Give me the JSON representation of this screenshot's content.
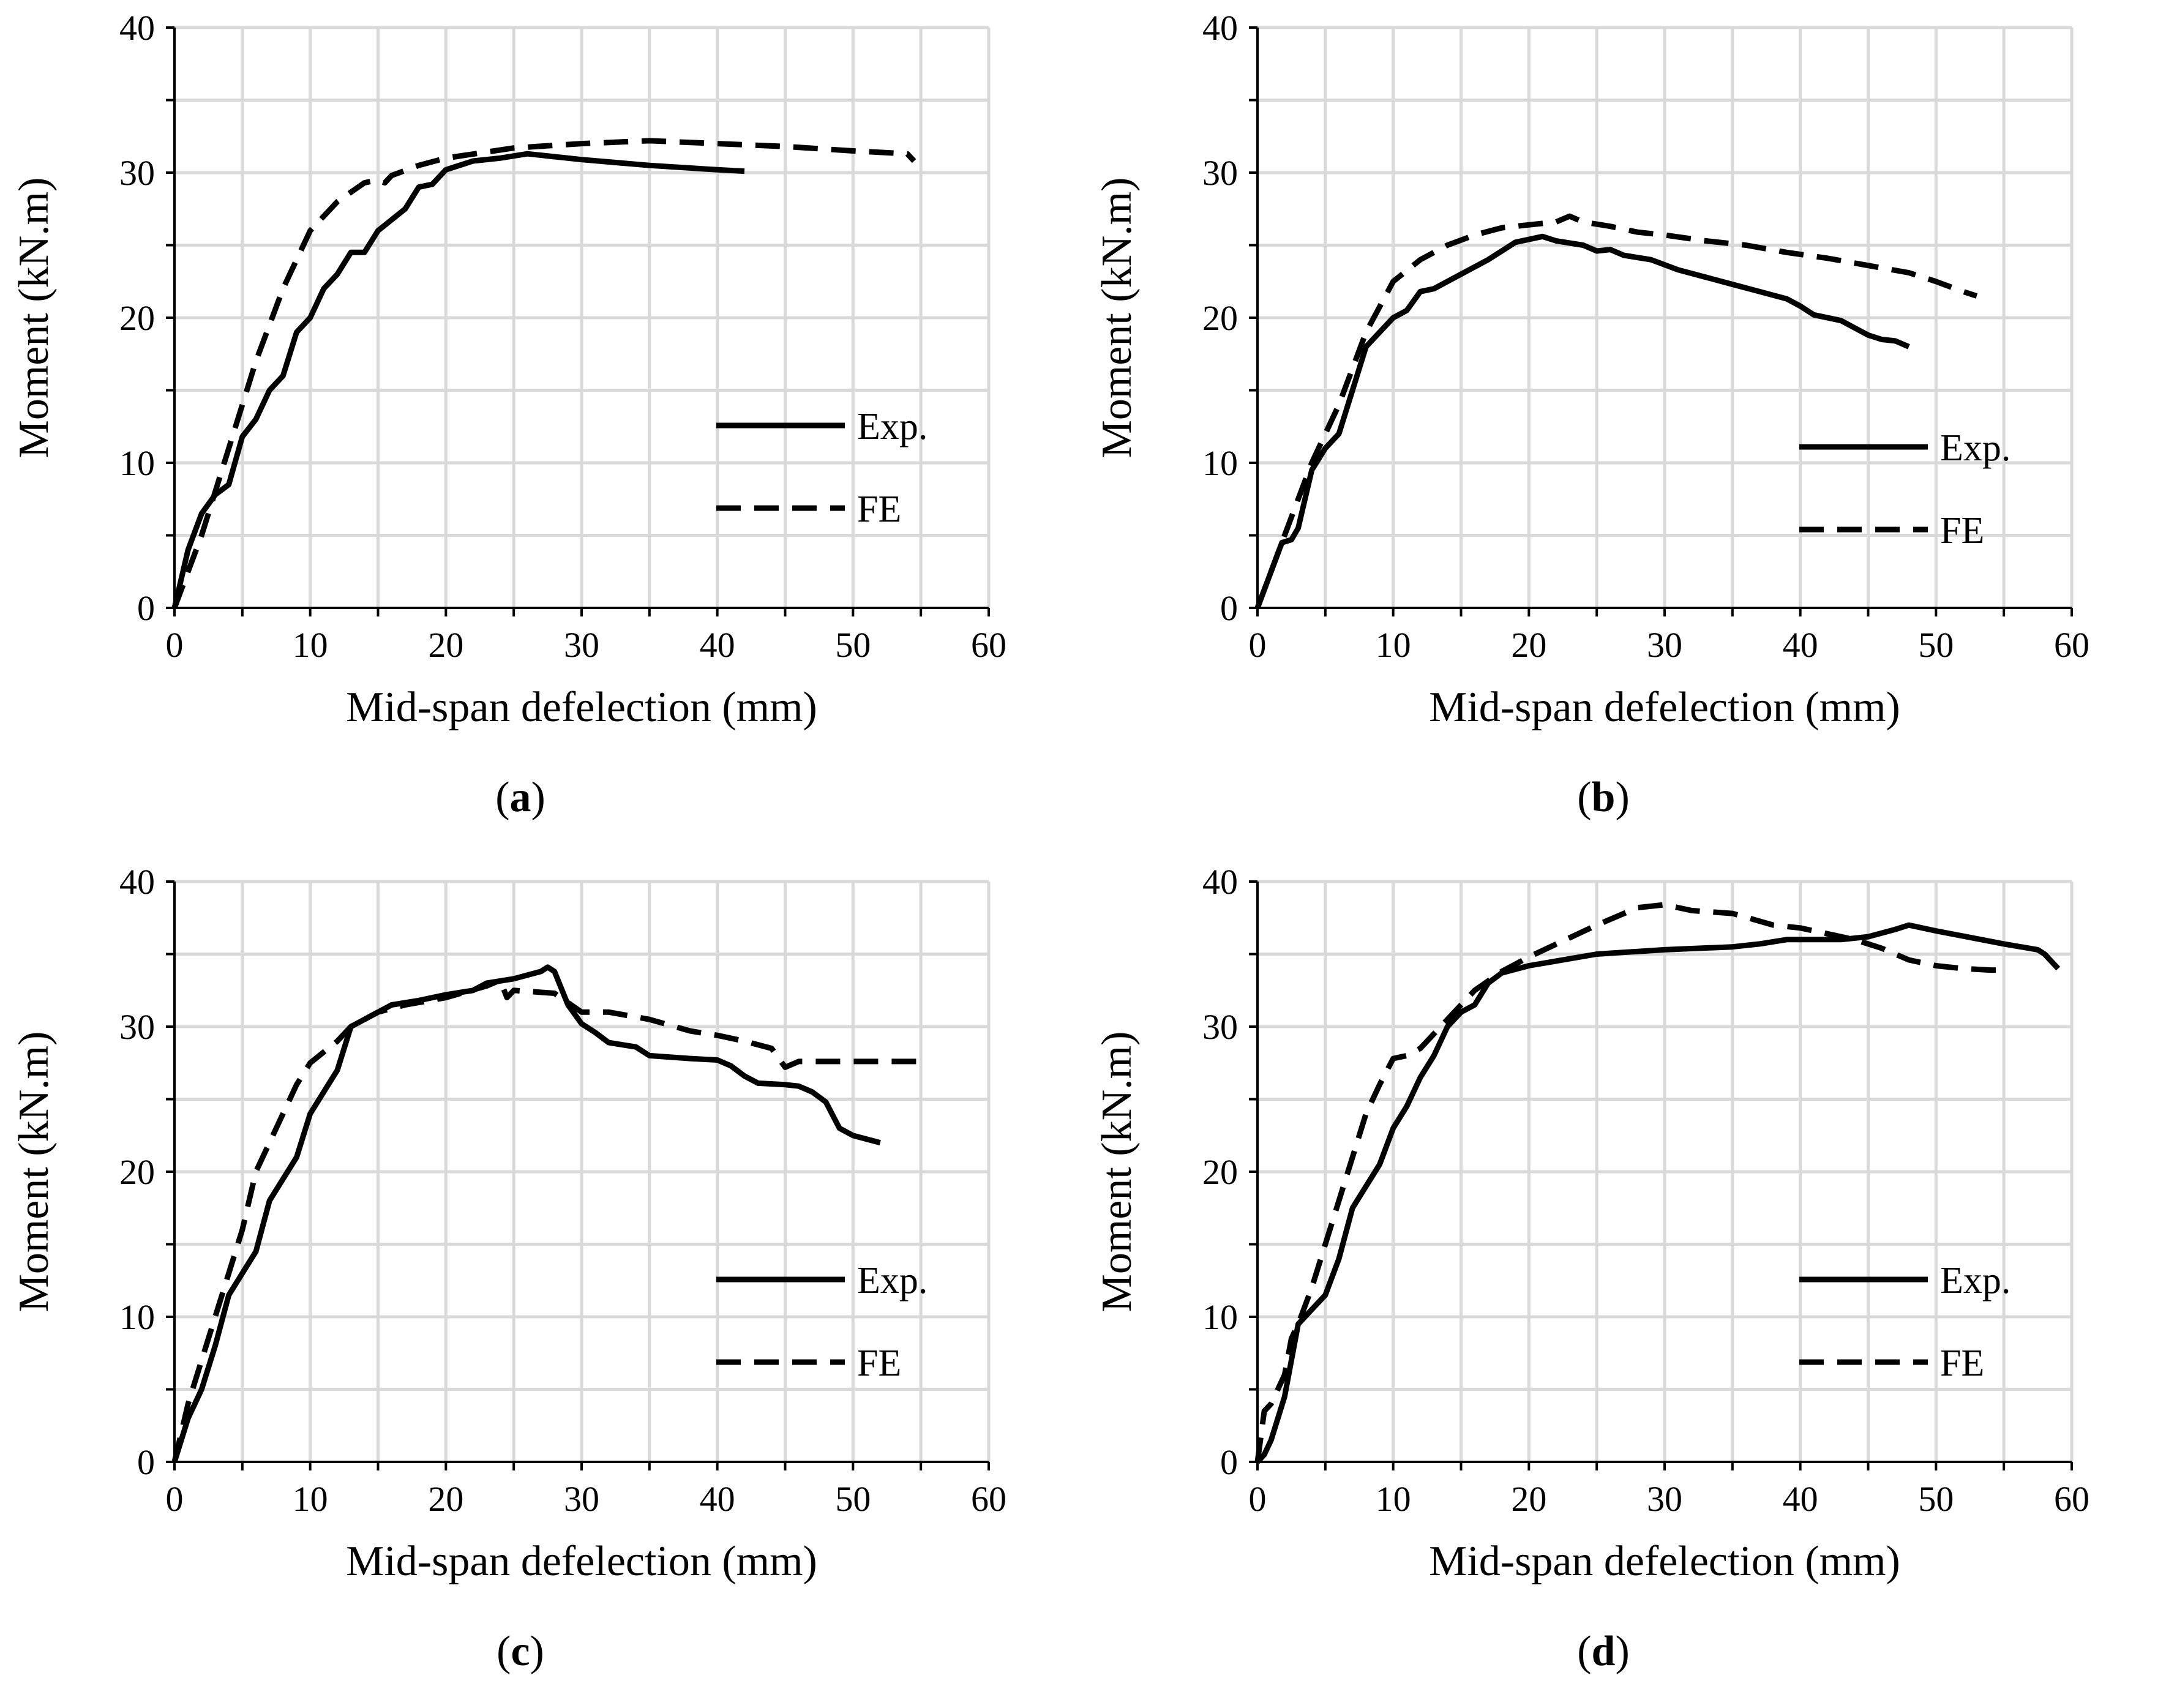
{
  "chart_data": [
    {
      "panel": "a",
      "caption_open": "(",
      "caption_letter": "a",
      "caption_close": ")",
      "type": "line",
      "xlabel": "Mid-span defelection (mm)",
      "ylabel": "Moment (kN.m)",
      "xlim": [
        0,
        60
      ],
      "ylim": [
        0,
        40
      ],
      "xticks": [
        0,
        10,
        20,
        30,
        40,
        50,
        60
      ],
      "yticks": [
        0,
        10,
        20,
        30,
        40
      ],
      "grid": true,
      "legend_position": "right-middle",
      "series": [
        {
          "name": "Exp.",
          "style": "solid",
          "points": [
            [
              0,
              0
            ],
            [
              1,
              4
            ],
            [
              2,
              6.5
            ],
            [
              3,
              7.8
            ],
            [
              4,
              8.5
            ],
            [
              5,
              11.8
            ],
            [
              6,
              13
            ],
            [
              7,
              15
            ],
            [
              8,
              16
            ],
            [
              9,
              19
            ],
            [
              10,
              20
            ],
            [
              11,
              22
            ],
            [
              12,
              23
            ],
            [
              13,
              24.5
            ],
            [
              14,
              24.5
            ],
            [
              15,
              26
            ],
            [
              17,
              27.5
            ],
            [
              18,
              29
            ],
            [
              19,
              29.2
            ],
            [
              20,
              30.2
            ],
            [
              22,
              30.8
            ],
            [
              24,
              31
            ],
            [
              26,
              31.3
            ],
            [
              30,
              30.9
            ],
            [
              35,
              30.5
            ],
            [
              40,
              30.2
            ],
            [
              42,
              30.1
            ]
          ]
        },
        {
          "name": "FE",
          "style": "dashed",
          "points": [
            [
              0,
              0
            ],
            [
              2,
              5
            ],
            [
              4,
              11
            ],
            [
              6,
              17
            ],
            [
              8,
              22
            ],
            [
              10,
              26
            ],
            [
              12,
              28
            ],
            [
              14,
              29.3
            ],
            [
              15,
              29.5
            ],
            [
              15.5,
              29.3
            ],
            [
              16,
              29.8
            ],
            [
              18,
              30.5
            ],
            [
              20,
              31
            ],
            [
              25,
              31.7
            ],
            [
              30,
              32
            ],
            [
              35,
              32.2
            ],
            [
              40,
              32
            ],
            [
              45,
              31.8
            ],
            [
              50,
              31.5
            ],
            [
              54,
              31.3
            ],
            [
              54.5,
              30.8
            ]
          ]
        }
      ]
    },
    {
      "panel": "b",
      "caption_open": "(",
      "caption_letter": "b",
      "caption_close": ")",
      "type": "line",
      "xlabel": "Mid-span defelection (mm)",
      "ylabel": "Moment (kN.m)",
      "xlim": [
        0,
        60
      ],
      "ylim": [
        0,
        40
      ],
      "xticks": [
        0,
        10,
        20,
        30,
        40,
        50,
        60
      ],
      "yticks": [
        0,
        10,
        20,
        30,
        40
      ],
      "grid": true,
      "legend_position": "right-middle",
      "series": [
        {
          "name": "Exp.",
          "style": "solid",
          "points": [
            [
              0,
              0
            ],
            [
              1,
              2.5
            ],
            [
              1.8,
              4.5
            ],
            [
              2.5,
              4.7
            ],
            [
              3,
              5.5
            ],
            [
              4,
              9.5
            ],
            [
              5,
              11
            ],
            [
              6,
              12
            ],
            [
              7,
              15
            ],
            [
              8,
              18
            ],
            [
              9,
              19
            ],
            [
              10,
              20
            ],
            [
              11,
              20.5
            ],
            [
              12,
              21.8
            ],
            [
              13,
              22
            ],
            [
              15,
              23
            ],
            [
              17,
              24
            ],
            [
              19,
              25.2
            ],
            [
              21,
              25.6
            ],
            [
              22,
              25.3
            ],
            [
              24,
              25
            ],
            [
              25,
              24.6
            ],
            [
              26,
              24.7
            ],
            [
              27,
              24.3
            ],
            [
              29,
              24
            ],
            [
              31,
              23.3
            ],
            [
              33,
              22.8
            ],
            [
              35,
              22.3
            ],
            [
              37,
              21.8
            ],
            [
              39,
              21.3
            ],
            [
              40,
              20.8
            ],
            [
              41,
              20.2
            ],
            [
              43,
              19.8
            ],
            [
              45,
              18.8
            ],
            [
              46,
              18.5
            ],
            [
              47,
              18.4
            ],
            [
              48,
              18
            ]
          ]
        },
        {
          "name": "FE",
          "style": "dashed",
          "points": [
            [
              0,
              0
            ],
            [
              2,
              5
            ],
            [
              4,
              10
            ],
            [
              6,
              14
            ],
            [
              8,
              19
            ],
            [
              10,
              22.5
            ],
            [
              12,
              24
            ],
            [
              14,
              25
            ],
            [
              16,
              25.7
            ],
            [
              18,
              26.2
            ],
            [
              20,
              26.4
            ],
            [
              22,
              26.6
            ],
            [
              23,
              27
            ],
            [
              24,
              26.6
            ],
            [
              26,
              26.3
            ],
            [
              28,
              25.9
            ],
            [
              30,
              25.7
            ],
            [
              33,
              25.3
            ],
            [
              36,
              25
            ],
            [
              39,
              24.5
            ],
            [
              42,
              24.1
            ],
            [
              45,
              23.6
            ],
            [
              48,
              23.1
            ],
            [
              50,
              22.5
            ],
            [
              52,
              21.8
            ],
            [
              53,
              21.5
            ]
          ]
        }
      ]
    },
    {
      "panel": "c",
      "caption_open": "(",
      "caption_letter": "c",
      "caption_close": ")",
      "type": "line",
      "xlabel": "Mid-span defelection (mm)",
      "ylabel": "Moment (kN.m)",
      "xlim": [
        0,
        60
      ],
      "ylim": [
        0,
        40
      ],
      "xticks": [
        0,
        10,
        20,
        30,
        40,
        50,
        60
      ],
      "yticks": [
        0,
        10,
        20,
        30,
        40
      ],
      "grid": true,
      "legend_position": "right-middle",
      "series": [
        {
          "name": "Exp.",
          "style": "solid",
          "points": [
            [
              0,
              0
            ],
            [
              1,
              3
            ],
            [
              2,
              5
            ],
            [
              3,
              8
            ],
            [
              4,
              11.5
            ],
            [
              5,
              13
            ],
            [
              6,
              14.5
            ],
            [
              7,
              18
            ],
            [
              8,
              19.5
            ],
            [
              9,
              21
            ],
            [
              10,
              24
            ],
            [
              11,
              25.5
            ],
            [
              12,
              27
            ],
            [
              13,
              30
            ],
            [
              14,
              30.5
            ],
            [
              15,
              31
            ],
            [
              16,
              31.5
            ],
            [
              18,
              31.8
            ],
            [
              20,
              32.2
            ],
            [
              22,
              32.5
            ],
            [
              23,
              33
            ],
            [
              25,
              33.3
            ],
            [
              27,
              33.8
            ],
            [
              27.5,
              34.1
            ],
            [
              28,
              33.8
            ],
            [
              29,
              31.5
            ],
            [
              30,
              30.2
            ],
            [
              31,
              29.6
            ],
            [
              32,
              28.9
            ],
            [
              34,
              28.6
            ],
            [
              35,
              28
            ],
            [
              38,
              27.8
            ],
            [
              40,
              27.7
            ],
            [
              41,
              27.3
            ],
            [
              42,
              26.6
            ],
            [
              43,
              26.1
            ],
            [
              45,
              26
            ],
            [
              46,
              25.9
            ],
            [
              47,
              25.5
            ],
            [
              48,
              24.8
            ],
            [
              49,
              23
            ],
            [
              50,
              22.5
            ],
            [
              52,
              22
            ]
          ]
        },
        {
          "name": "FE",
          "style": "dashed",
          "points": [
            [
              0,
              0
            ],
            [
              1,
              4
            ],
            [
              2,
              7
            ],
            [
              3,
              10
            ],
            [
              4,
              13
            ],
            [
              5,
              16
            ],
            [
              6,
              20
            ],
            [
              7,
              22
            ],
            [
              8,
              24
            ],
            [
              9,
              26
            ],
            [
              10,
              27.5
            ],
            [
              12,
              29
            ],
            [
              13,
              30
            ],
            [
              15,
              31
            ],
            [
              17,
              31.5
            ],
            [
              20,
              32
            ],
            [
              23,
              32.8
            ],
            [
              24,
              33.2
            ],
            [
              24.5,
              32
            ],
            [
              25,
              32.5
            ],
            [
              28,
              32.3
            ],
            [
              30,
              31
            ],
            [
              32,
              31
            ],
            [
              35,
              30.5
            ],
            [
              38,
              29.7
            ],
            [
              40,
              29.4
            ],
            [
              42,
              29
            ],
            [
              44,
              28.5
            ],
            [
              45,
              27.2
            ],
            [
              46,
              27.6
            ],
            [
              50,
              27.6
            ],
            [
              55,
              27.6
            ]
          ]
        }
      ]
    },
    {
      "panel": "d",
      "caption_open": "(",
      "caption_letter": "d",
      "caption_close": ")",
      "type": "line",
      "xlabel": "Mid-span defelection (mm)",
      "ylabel": "Moment (kN.m)",
      "xlim": [
        0,
        60
      ],
      "ylim": [
        0,
        40
      ],
      "xticks": [
        0,
        10,
        20,
        30,
        40,
        50,
        60
      ],
      "yticks": [
        0,
        10,
        20,
        30,
        40
      ],
      "grid": true,
      "legend_position": "right-middle",
      "series": [
        {
          "name": "Exp.",
          "style": "solid",
          "points": [
            [
              0,
              0
            ],
            [
              0.5,
              0.5
            ],
            [
              1,
              1.5
            ],
            [
              1.5,
              3
            ],
            [
              2,
              4.5
            ],
            [
              2.5,
              7
            ],
            [
              3,
              9.5
            ],
            [
              4,
              10.5
            ],
            [
              5,
              11.5
            ],
            [
              6,
              14
            ],
            [
              7,
              17.5
            ],
            [
              8,
              19
            ],
            [
              9,
              20.5
            ],
            [
              10,
              23
            ],
            [
              11,
              24.5
            ],
            [
              12,
              26.5
            ],
            [
              13,
              28
            ],
            [
              14,
              30
            ],
            [
              15,
              31
            ],
            [
              16,
              31.5
            ],
            [
              17,
              33
            ],
            [
              18,
              33.7
            ],
            [
              20,
              34.2
            ],
            [
              25,
              35
            ],
            [
              30,
              35.3
            ],
            [
              35,
              35.5
            ],
            [
              37,
              35.7
            ],
            [
              39,
              36
            ],
            [
              43,
              36
            ],
            [
              45,
              36.2
            ],
            [
              47,
              36.7
            ],
            [
              48,
              37
            ],
            [
              50,
              36.6
            ],
            [
              55,
              35.7
            ],
            [
              57.5,
              35.3
            ],
            [
              58,
              35
            ],
            [
              59,
              34
            ]
          ]
        },
        {
          "name": "FE",
          "style": "dashed",
          "points": [
            [
              0,
              0
            ],
            [
              0.5,
              3.5
            ],
            [
              1,
              4
            ],
            [
              2,
              6
            ],
            [
              2.5,
              8.5
            ],
            [
              3,
              9.5
            ],
            [
              4,
              12
            ],
            [
              5,
              15
            ],
            [
              6,
              18
            ],
            [
              7,
              21
            ],
            [
              8,
              24
            ],
            [
              9,
              26
            ],
            [
              10,
              27.8
            ],
            [
              11,
              28
            ],
            [
              12,
              28.5
            ],
            [
              14,
              30.5
            ],
            [
              16,
              32.5
            ],
            [
              18,
              33.8
            ],
            [
              20,
              34.8
            ],
            [
              25,
              37
            ],
            [
              28,
              38.2
            ],
            [
              30,
              38.4
            ],
            [
              32,
              38
            ],
            [
              35,
              37.8
            ],
            [
              38,
              37
            ],
            [
              40,
              36.8
            ],
            [
              42,
              36.4
            ],
            [
              44,
              36
            ],
            [
              46,
              35.4
            ],
            [
              48,
              34.6
            ],
            [
              50,
              34.2
            ],
            [
              52,
              34
            ],
            [
              54,
              33.9
            ],
            [
              55,
              33.9
            ]
          ]
        }
      ]
    }
  ]
}
